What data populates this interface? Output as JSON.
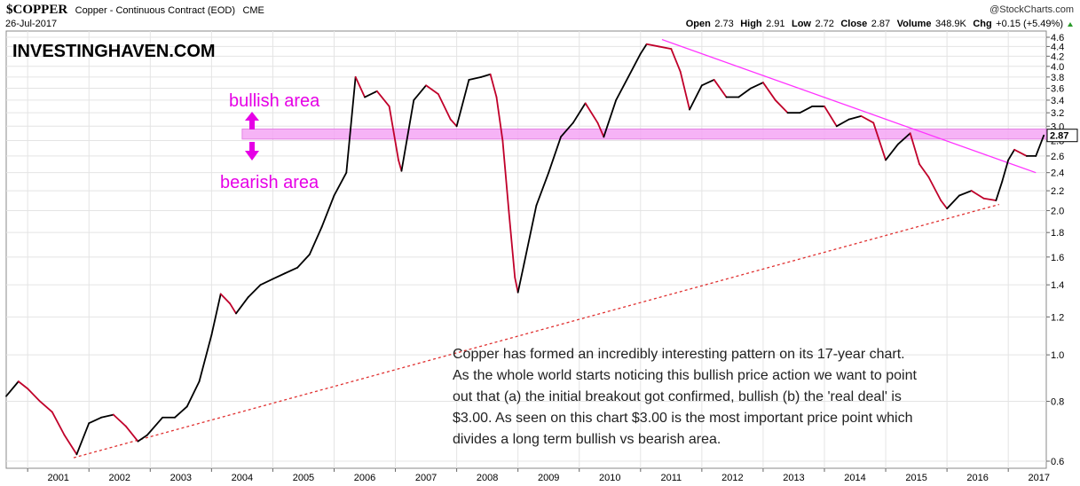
{
  "header": {
    "symbol": "$COPPER",
    "name": "Copper - Continuous Contract (EOD)",
    "exchange": "CME",
    "date": "26-Jul-2017",
    "source": "@StockCharts.com",
    "open_label": "Open",
    "open": "2.73",
    "high_label": "High",
    "high": "2.91",
    "low_label": "Low",
    "low": "2.72",
    "close_label": "Close",
    "close": "2.87",
    "volume_label": "Volume",
    "volume": "348.9K",
    "chg_label": "Chg",
    "chg": "+0.15 (+5.49%)"
  },
  "watermark": "INVESTINGHAVEN.COM",
  "zones": {
    "bullish": "bullish area",
    "bearish": "bearish area"
  },
  "note_lines": [
    "Copper has formed an incredibly interesting pattern on its 17-year chart.",
    "As the whole world starts noticing this bullish price action we want to point",
    "out that (a) the initial breakout got confirmed, bullish (b) the 'real deal' is",
    "$3.00. As seen on this chart $3.00 is the most important price point which",
    "divides a long term bullish vs bearish area."
  ],
  "colors": {
    "price_up": "#000000",
    "price_down": "#c0002a",
    "resistance_band": "#f5a6f5",
    "trendline_down": "#ff33ff",
    "trendline_up": "#e03030",
    "annotation": "#e600e6"
  },
  "chart_data": {
    "type": "line",
    "yscale": "log",
    "ylim": [
      0.6,
      4.6
    ],
    "xlim": [
      2000.65,
      2017.62
    ],
    "y_ticks": [
      0.6,
      0.8,
      1.0,
      1.2,
      1.4,
      1.6,
      1.8,
      2.0,
      2.2,
      2.4,
      2.6,
      2.8,
      3.0,
      3.2,
      3.4,
      3.6,
      3.8,
      4.0,
      4.2,
      4.4,
      4.6
    ],
    "x_tick_labels": [
      "2001",
      "2002",
      "2003",
      "2004",
      "2005",
      "2006",
      "2007",
      "2008",
      "2009",
      "2010",
      "2011",
      "2012",
      "2013",
      "2014",
      "2015",
      "2016",
      "2017"
    ],
    "last_value_label": "2.87",
    "resistance_band": [
      2.82,
      2.96
    ],
    "downtrend_line": [
      [
        2011.35,
        4.55
      ],
      [
        2017.45,
        2.4
      ]
    ],
    "uptrend_line": [
      [
        2001.75,
        0.61
      ],
      [
        2016.85,
        2.06
      ]
    ],
    "series": [
      {
        "points": [
          [
            2000.65,
            0.82
          ],
          [
            2000.85,
            0.88
          ],
          [
            2001.0,
            0.85
          ],
          [
            2001.2,
            0.8
          ],
          [
            2001.4,
            0.76
          ],
          [
            2001.6,
            0.68
          ],
          [
            2001.8,
            0.62
          ],
          [
            2002.0,
            0.72
          ],
          [
            2002.2,
            0.74
          ],
          [
            2002.4,
            0.75
          ],
          [
            2002.6,
            0.71
          ],
          [
            2002.8,
            0.66
          ],
          [
            2002.95,
            0.68
          ],
          [
            2003.2,
            0.74
          ],
          [
            2003.4,
            0.74
          ],
          [
            2003.6,
            0.78
          ],
          [
            2003.8,
            0.88
          ],
          [
            2004.0,
            1.1
          ],
          [
            2004.15,
            1.34
          ],
          [
            2004.3,
            1.28
          ],
          [
            2004.4,
            1.22
          ],
          [
            2004.6,
            1.32
          ],
          [
            2004.8,
            1.4
          ],
          [
            2005.0,
            1.44
          ],
          [
            2005.2,
            1.48
          ],
          [
            2005.4,
            1.52
          ],
          [
            2005.6,
            1.62
          ],
          [
            2005.8,
            1.85
          ],
          [
            2006.0,
            2.15
          ],
          [
            2006.2,
            2.4
          ],
          [
            2006.35,
            3.8
          ],
          [
            2006.5,
            3.45
          ],
          [
            2006.7,
            3.55
          ],
          [
            2006.9,
            3.3
          ],
          [
            2007.05,
            2.55
          ],
          [
            2007.1,
            2.42
          ],
          [
            2007.3,
            3.4
          ],
          [
            2007.5,
            3.65
          ],
          [
            2007.7,
            3.5
          ],
          [
            2007.9,
            3.1
          ],
          [
            2008.0,
            3.0
          ],
          [
            2008.2,
            3.75
          ],
          [
            2008.4,
            3.8
          ],
          [
            2008.55,
            3.85
          ],
          [
            2008.65,
            3.45
          ],
          [
            2008.75,
            2.8
          ],
          [
            2008.85,
            2.0
          ],
          [
            2008.95,
            1.45
          ],
          [
            2009.0,
            1.35
          ],
          [
            2009.1,
            1.55
          ],
          [
            2009.3,
            2.05
          ],
          [
            2009.5,
            2.4
          ],
          [
            2009.7,
            2.85
          ],
          [
            2009.9,
            3.05
          ],
          [
            2010.1,
            3.35
          ],
          [
            2010.3,
            3.05
          ],
          [
            2010.4,
            2.85
          ],
          [
            2010.6,
            3.4
          ],
          [
            2010.8,
            3.8
          ],
          [
            2011.0,
            4.25
          ],
          [
            2011.1,
            4.45
          ],
          [
            2011.3,
            4.4
          ],
          [
            2011.5,
            4.35
          ],
          [
            2011.65,
            3.9
          ],
          [
            2011.8,
            3.25
          ],
          [
            2012.0,
            3.65
          ],
          [
            2012.2,
            3.75
          ],
          [
            2012.4,
            3.45
          ],
          [
            2012.6,
            3.45
          ],
          [
            2012.8,
            3.6
          ],
          [
            2013.0,
            3.7
          ],
          [
            2013.2,
            3.4
          ],
          [
            2013.4,
            3.2
          ],
          [
            2013.6,
            3.2
          ],
          [
            2013.8,
            3.3
          ],
          [
            2014.0,
            3.3
          ],
          [
            2014.2,
            3.0
          ],
          [
            2014.4,
            3.1
          ],
          [
            2014.6,
            3.15
          ],
          [
            2014.8,
            3.05
          ],
          [
            2015.0,
            2.55
          ],
          [
            2015.2,
            2.75
          ],
          [
            2015.4,
            2.9
          ],
          [
            2015.55,
            2.5
          ],
          [
            2015.7,
            2.35
          ],
          [
            2015.9,
            2.1
          ],
          [
            2016.0,
            2.02
          ],
          [
            2016.2,
            2.15
          ],
          [
            2016.4,
            2.2
          ],
          [
            2016.6,
            2.12
          ],
          [
            2016.8,
            2.1
          ],
          [
            2016.9,
            2.3
          ],
          [
            2017.0,
            2.55
          ],
          [
            2017.1,
            2.68
          ],
          [
            2017.3,
            2.6
          ],
          [
            2017.45,
            2.6
          ],
          [
            2017.58,
            2.87
          ]
        ]
      }
    ]
  }
}
